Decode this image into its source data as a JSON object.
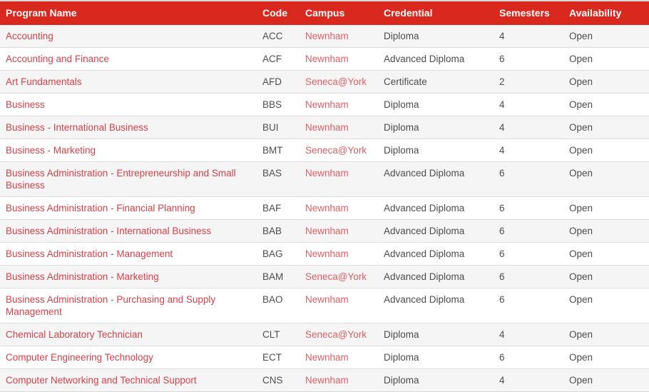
{
  "colors": {
    "header_bg": "#d9291e",
    "header_text": "#ffffff",
    "stripe": "#f5f5f5",
    "border": "#dddddd",
    "body_text": "#4d4d4d",
    "program_link": "#d6414b",
    "campus_link": "#de6066"
  },
  "table": {
    "columns": [
      {
        "key": "name",
        "label": "Program Name"
      },
      {
        "key": "code",
        "label": "Code"
      },
      {
        "key": "campus",
        "label": "Campus"
      },
      {
        "key": "credential",
        "label": "Credential"
      },
      {
        "key": "semesters",
        "label": "Semesters"
      },
      {
        "key": "availability",
        "label": "Availability"
      }
    ],
    "rows": [
      {
        "name": "Accounting",
        "code": "ACC",
        "campus": "Newnham",
        "credential": "Diploma",
        "semesters": "4",
        "availability": "Open"
      },
      {
        "name": "Accounting and Finance",
        "code": "ACF",
        "campus": "Newnham",
        "credential": "Advanced Diploma",
        "semesters": "6",
        "availability": "Open"
      },
      {
        "name": "Art Fundamentals",
        "code": "AFD",
        "campus": "Seneca@York",
        "credential": "Certificate",
        "semesters": "2",
        "availability": "Open"
      },
      {
        "name": "Business",
        "code": "BBS",
        "campus": "Newnham",
        "credential": "Diploma",
        "semesters": "4",
        "availability": "Open"
      },
      {
        "name": "Business - International Business",
        "code": "BUI",
        "campus": "Newnham",
        "credential": "Diploma",
        "semesters": "4",
        "availability": "Open"
      },
      {
        "name": "Business - Marketing",
        "code": "BMT",
        "campus": "Seneca@York",
        "credential": "Diploma",
        "semesters": "4",
        "availability": "Open"
      },
      {
        "name": "Business Administration - Entrepreneurship and Small Business",
        "code": "BAS",
        "campus": "Newnham",
        "credential": "Advanced Diploma",
        "semesters": "6",
        "availability": "Open"
      },
      {
        "name": "Business Administration - Financial Planning",
        "code": "BAF",
        "campus": "Newnham",
        "credential": "Advanced Diploma",
        "semesters": "6",
        "availability": "Open"
      },
      {
        "name": "Business Administration - International Business",
        "code": "BAB",
        "campus": "Newnham",
        "credential": "Advanced Diploma",
        "semesters": "6",
        "availability": "Open"
      },
      {
        "name": "Business Administration - Management",
        "code": "BAG",
        "campus": "Newnham",
        "credential": "Advanced Diploma",
        "semesters": "6",
        "availability": "Open"
      },
      {
        "name": "Business Administration - Marketing",
        "code": "BAM",
        "campus": "Seneca@York",
        "credential": "Advanced Diploma",
        "semesters": "6",
        "availability": "Open"
      },
      {
        "name": "Business Administration - Purchasing and Supply Management",
        "code": "BAO",
        "campus": "Newnham",
        "credential": "Advanced Diploma",
        "semesters": "6",
        "availability": "Open"
      },
      {
        "name": "Chemical Laboratory Technician",
        "code": "CLT",
        "campus": "Seneca@York",
        "credential": "Diploma",
        "semesters": "4",
        "availability": "Open"
      },
      {
        "name": "Computer Engineering Technology",
        "code": "ECT",
        "campus": "Newnham",
        "credential": "Diploma",
        "semesters": "6",
        "availability": "Open"
      },
      {
        "name": "Computer Networking and Technical Support",
        "code": "CNS",
        "campus": "Newnham",
        "credential": "Diploma",
        "semesters": "4",
        "availability": "Open"
      }
    ]
  }
}
